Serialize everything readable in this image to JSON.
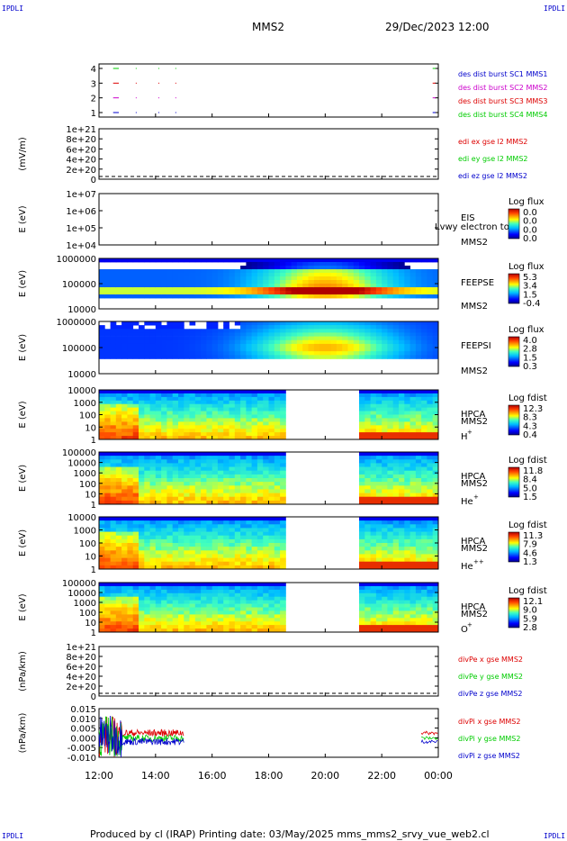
{
  "header": {
    "corner_label": "IPDLI",
    "spacecraft": "MMS2",
    "datetime": "29/Dec/2023 12:00"
  },
  "footer": {
    "text": "Produced by cl (IRAP)   Printing date: 03/May/2025   mms_mms2_srvy_vue_web2.cl"
  },
  "colors": {
    "red": "#dd0000",
    "green": "#00cc00",
    "blue": "#0000cc",
    "magenta": "#cc00cc",
    "frame": "#000000"
  },
  "chart_data": {
    "type": "stacked-timeseries",
    "x_ticks": [
      "12:00",
      "14:00",
      "16:00",
      "18:00",
      "20:00",
      "22:00",
      "00:00"
    ],
    "xlim_hours": [
      12,
      24
    ],
    "panels": [
      {
        "id": "burst",
        "type": "line",
        "ylabel": "",
        "yticks": [
          "4",
          "3",
          "2",
          "1"
        ],
        "legend": [
          {
            "text": "des dist burst SC1 MMS1",
            "color": "#0000cc"
          },
          {
            "text": "des dist burst SC2 MMS2",
            "color": "#cc00cc"
          },
          {
            "text": "des dist burst SC3 MMS3",
            "color": "#dd0000"
          },
          {
            "text": "des dist burst SC4 MMS4",
            "color": "#00cc00"
          }
        ]
      },
      {
        "id": "edi",
        "type": "line",
        "ylabel": "(mV/m)",
        "yticks": [
          "1e+21",
          "8e+20",
          "6e+20",
          "4e+20",
          "2e+20",
          "0"
        ],
        "legend": [
          {
            "text": "edi ex gse l2 MMS2",
            "color": "#dd0000"
          },
          {
            "text": "edi ey gse l2 MMS2",
            "color": "#00cc00"
          },
          {
            "text": "edi ez gse l2 MMS2",
            "color": "#0000cc"
          }
        ]
      },
      {
        "id": "eis",
        "type": "heatmap",
        "ylabel": "E (eV)",
        "yticks": [
          "1e+07",
          "1e+06",
          "1e+05",
          "1e+04"
        ],
        "labels": [
          "EIS",
          "MMS2"
        ],
        "overlay": "Lvwy electron to",
        "cbar_title": "Log flux",
        "cbar_ticks": [
          "0.0",
          "0.0",
          "0.0",
          "0.0"
        ]
      },
      {
        "id": "feepse",
        "type": "heatmap",
        "ylabel": "E (eV)",
        "yticks": [
          "1000000",
          "100000",
          "10000"
        ],
        "labels": [
          "FEEPSE",
          "MMS2"
        ],
        "cbar_title": "Log flux",
        "cbar_ticks": [
          "5.3",
          "3.4",
          "1.5",
          "-0.4"
        ]
      },
      {
        "id": "feepsi",
        "type": "heatmap",
        "ylabel": "E (eV)",
        "yticks": [
          "1000000",
          "100000",
          "10000"
        ],
        "labels": [
          "FEEPSI",
          "MMS2"
        ],
        "cbar_title": "Log flux",
        "cbar_ticks": [
          "4.0",
          "2.8",
          "1.5",
          "0.3"
        ]
      },
      {
        "id": "hpca-h",
        "type": "heatmap",
        "ylabel": "E (eV)",
        "yticks": [
          "10000",
          "1000",
          "100",
          "10",
          "1"
        ],
        "labels": [
          "HPCA",
          "MMS2"
        ],
        "species": "H",
        "charge": "+",
        "cbar_title": "Log fdist",
        "cbar_ticks": [
          "12.3",
          "8.3",
          "4.3",
          "0.4"
        ]
      },
      {
        "id": "hpca-he",
        "type": "heatmap",
        "ylabel": "E (eV)",
        "yticks": [
          "100000",
          "10000",
          "1000",
          "100",
          "10",
          "1"
        ],
        "labels": [
          "HPCA",
          "MMS2"
        ],
        "species": "He",
        "charge": "+",
        "cbar_title": "Log fdist",
        "cbar_ticks": [
          "11.8",
          "8.4",
          "5.0",
          "1.5"
        ]
      },
      {
        "id": "hpca-he2",
        "type": "heatmap",
        "ylabel": "E (eV)",
        "yticks": [
          "10000",
          "1000",
          "100",
          "10",
          "1"
        ],
        "labels": [
          "HPCA",
          "MMS2"
        ],
        "species": "He",
        "charge": "++",
        "cbar_title": "Log fdist",
        "cbar_ticks": [
          "11.3",
          "7.9",
          "4.6",
          "1.3"
        ]
      },
      {
        "id": "hpca-o",
        "type": "heatmap",
        "ylabel": "E (eV)",
        "yticks": [
          "100000",
          "10000",
          "1000",
          "100",
          "10",
          "1"
        ],
        "labels": [
          "HPCA",
          "MMS2"
        ],
        "species": "O",
        "charge": "+",
        "cbar_title": "Log fdist",
        "cbar_ticks": [
          "12.1",
          "9.0",
          "5.9",
          "2.8"
        ]
      },
      {
        "id": "divpe",
        "type": "line",
        "ylabel": "(nPa/km)",
        "yticks": [
          "1e+21",
          "8e+20",
          "6e+20",
          "4e+20",
          "2e+20",
          "0"
        ],
        "legend": [
          {
            "text": "divPe x gse MMS2",
            "color": "#dd0000"
          },
          {
            "text": "divPe y gse MMS2",
            "color": "#00cc00"
          },
          {
            "text": "divPe z gse MMS2",
            "color": "#0000cc"
          }
        ]
      },
      {
        "id": "divpi",
        "type": "line",
        "ylabel": "(nPa/km)",
        "yticks": [
          "0.015",
          "0.010",
          "0.005",
          "0.000",
          "-0.005",
          "-0.010"
        ],
        "ylim": [
          -0.012,
          0.016
        ],
        "legend": [
          {
            "text": "divPi x gse MMS2",
            "color": "#dd0000"
          },
          {
            "text": "divPi y gse MMS2",
            "color": "#00cc00"
          },
          {
            "text": "divPi z gse MMS2",
            "color": "#0000cc"
          }
        ]
      }
    ]
  }
}
